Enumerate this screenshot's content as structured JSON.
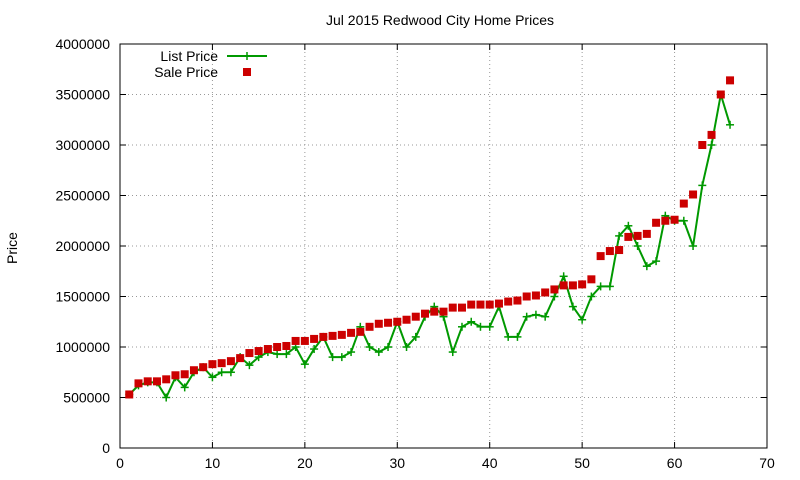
{
  "chart_data": {
    "type": "line",
    "title": "Jul 2015 Redwood City Home Prices",
    "xlabel": "",
    "ylabel": "Price",
    "xlim": [
      0,
      70
    ],
    "ylim": [
      0,
      4000000
    ],
    "xticks": [
      0,
      10,
      20,
      30,
      40,
      50,
      60,
      70
    ],
    "yticks": [
      0,
      500000,
      1000000,
      1500000,
      2000000,
      2500000,
      3000000,
      3500000,
      4000000
    ],
    "grid": true,
    "legend_position": "top-left",
    "series": [
      {
        "name": "List Price",
        "style": "line-plus",
        "color": "#009900",
        "x": [
          1,
          2,
          3,
          4,
          5,
          6,
          7,
          8,
          9,
          10,
          11,
          12,
          13,
          14,
          15,
          16,
          17,
          18,
          19,
          20,
          21,
          22,
          23,
          24,
          25,
          26,
          27,
          28,
          29,
          30,
          31,
          32,
          33,
          34,
          35,
          36,
          37,
          38,
          39,
          40,
          41,
          42,
          43,
          44,
          45,
          46,
          47,
          48,
          49,
          50,
          51,
          52,
          53,
          54,
          55,
          56,
          57,
          58,
          59,
          60,
          61,
          62,
          63,
          64,
          65,
          66
        ],
        "y": [
          530000,
          620000,
          650000,
          650000,
          500000,
          700000,
          600000,
          750000,
          800000,
          700000,
          750000,
          750000,
          900000,
          820000,
          900000,
          950000,
          930000,
          930000,
          1000000,
          830000,
          980000,
          1100000,
          900000,
          900000,
          950000,
          1200000,
          1000000,
          950000,
          1000000,
          1250000,
          1000000,
          1100000,
          1300000,
          1400000,
          1300000,
          950000,
          1200000,
          1250000,
          1200000,
          1200000,
          1400000,
          1100000,
          1100000,
          1300000,
          1320000,
          1300000,
          1500000,
          1700000,
          1400000,
          1270000,
          1500000,
          1600000,
          1600000,
          2100000,
          2200000,
          2000000,
          1800000,
          1850000,
          2300000,
          2250000,
          2250000,
          2000000,
          2600000,
          3000000,
          3500000,
          3200000
        ]
      },
      {
        "name": "Sale Price",
        "style": "square",
        "color": "#cc0000",
        "x": [
          1,
          2,
          3,
          4,
          5,
          6,
          7,
          8,
          9,
          10,
          11,
          12,
          13,
          14,
          15,
          16,
          17,
          18,
          19,
          20,
          21,
          22,
          23,
          24,
          25,
          26,
          27,
          28,
          29,
          30,
          31,
          32,
          33,
          34,
          35,
          36,
          37,
          38,
          39,
          40,
          41,
          42,
          43,
          44,
          45,
          46,
          47,
          48,
          49,
          50,
          51,
          52,
          53,
          54,
          55,
          56,
          57,
          58,
          59,
          60,
          61,
          62,
          63,
          64,
          65,
          66
        ],
        "y": [
          530000,
          640000,
          660000,
          660000,
          680000,
          720000,
          730000,
          770000,
          800000,
          830000,
          840000,
          860000,
          890000,
          940000,
          960000,
          980000,
          1000000,
          1010000,
          1060000,
          1060000,
          1080000,
          1100000,
          1110000,
          1120000,
          1140000,
          1150000,
          1200000,
          1230000,
          1240000,
          1250000,
          1270000,
          1300000,
          1330000,
          1350000,
          1350000,
          1390000,
          1390000,
          1420000,
          1420000,
          1420000,
          1430000,
          1450000,
          1460000,
          1500000,
          1510000,
          1540000,
          1570000,
          1610000,
          1610000,
          1620000,
          1670000,
          1900000,
          1950000,
          1960000,
          2090000,
          2100000,
          2120000,
          2230000,
          2250000,
          2260000,
          2420000,
          2510000,
          3000000,
          3100000,
          3500000,
          3640000
        ]
      }
    ]
  }
}
